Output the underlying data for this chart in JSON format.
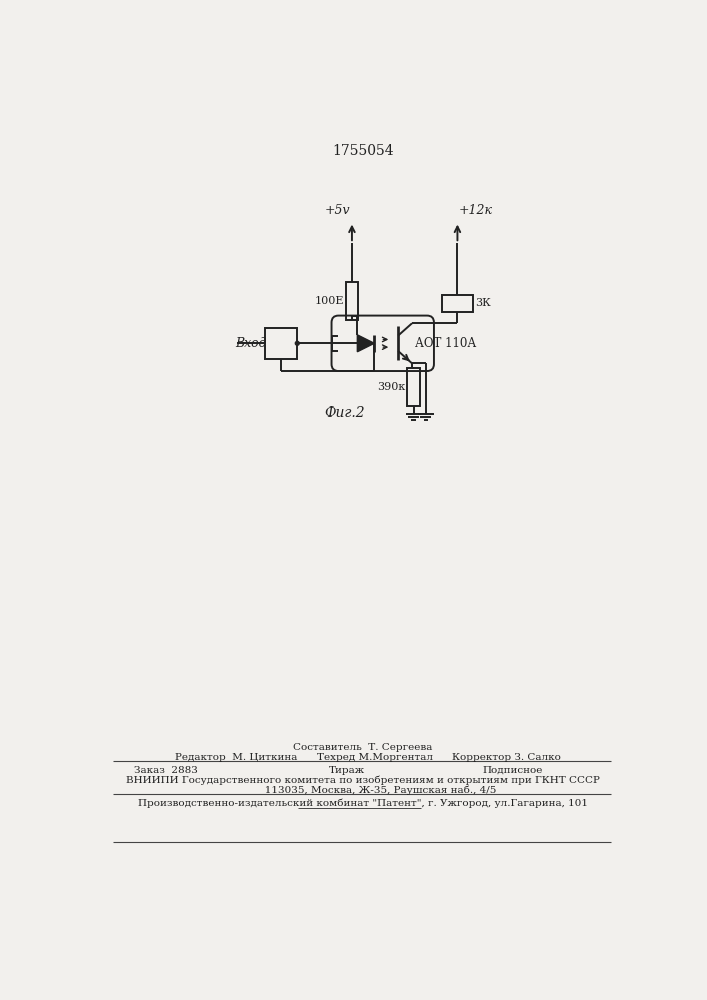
{
  "title": "1755054",
  "fig_label": "Фиг.2",
  "bg_color": "#f2f0ed",
  "line_color": "#222222",
  "text_color": "#222222",
  "labels": {
    "top_left_supply": "+5v",
    "top_right_supply": "+12к",
    "resistor1_label": "100Е",
    "resistor2_label": "3К",
    "resistor3_label": "390к",
    "transistor_label": "АОТ 110А",
    "input_label": "Вход"
  },
  "footer": {
    "line1a": "Составитель  Т. Сергеева",
    "line1b": "Редактор  М. Циткина",
    "line1c": "Техред М.Моргентал",
    "line1d": "Корректор З. Салко",
    "line2a": "Заказ  2883",
    "line2b": "Тираж",
    "line2c": "Подписное",
    "line3": "ВНИИПИ Государственного комитета по изобретениям и открытиям при ГКНТ СССР",
    "line4": "           113035, Москва, Ж-35, Раушская наб., 4/5",
    "line5": "Производственно-издательский комбинат \"Патент\", г. Ужгород, ул.Гагарина, 101"
  }
}
